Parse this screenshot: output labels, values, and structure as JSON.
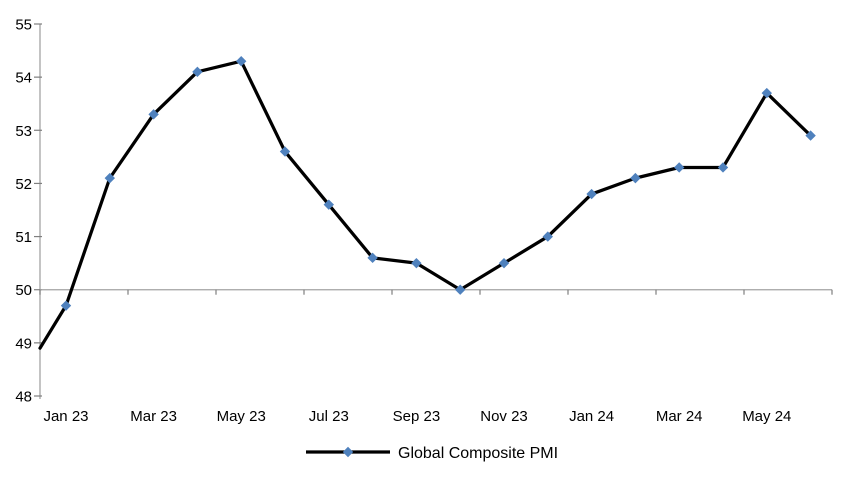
{
  "chart_data": {
    "type": "line",
    "title": "",
    "categories": [
      "Jan 23",
      "Feb 23",
      "Mar 23",
      "Apr 23",
      "May 23",
      "Jun 23",
      "Jul 23",
      "Aug 23",
      "Sep 23",
      "Oct 23",
      "Nov 23",
      "Dec 23",
      "Jan 24",
      "Feb 24",
      "Mar 24",
      "Apr 24",
      "May 24",
      "Jun 24"
    ],
    "series": [
      {
        "name": "Global Composite PMI",
        "values": [
          49.7,
          52.1,
          53.3,
          54.1,
          54.3,
          52.6,
          51.6,
          50.6,
          50.5,
          50.0,
          50.5,
          51.0,
          51.8,
          52.1,
          52.3,
          52.3,
          53.7,
          52.9
        ],
        "line_color": "#000000",
        "marker": "diamond",
        "marker_color": "#4F81BD"
      }
    ],
    "left_edge_entry_value": 48.9,
    "x_tick_labels": [
      "Jan 23",
      "Mar 23",
      "May 23",
      "Jul 23",
      "Sep 23",
      "Nov 23",
      "Jan 24",
      "Mar 24",
      "May 24"
    ],
    "y_ticks": [
      48,
      49,
      50,
      51,
      52,
      53,
      54,
      55
    ],
    "ylim": [
      48,
      55
    ],
    "x_axis_position_value": 50,
    "grid": "off",
    "legend_position": "bottom",
    "legend_label": "Global Composite PMI",
    "axis_color": "#A3A3A3",
    "tick_color": "#7F7F7F",
    "text_color": "#000000",
    "background_color": "#FFFFFF"
  }
}
